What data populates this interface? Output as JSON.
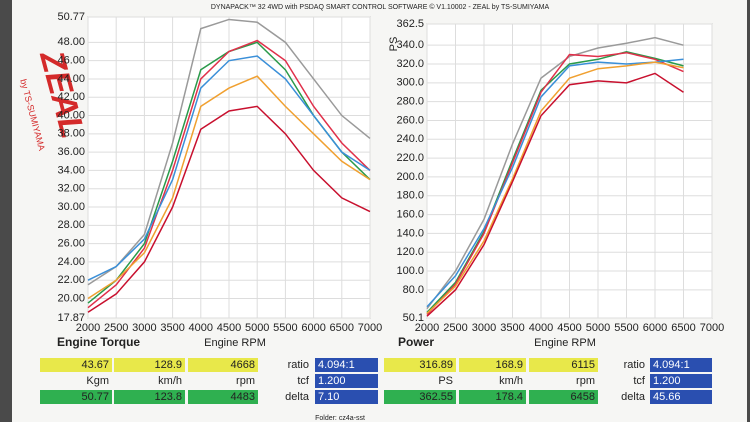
{
  "header": "DYNAPACK™ 32 4WD with PSDAQ SMART CONTROL SOFTWARE © V1.10002 - ZEAL by TS-SUMIYAMA",
  "logo": {
    "name": "ZEAL",
    "tagline": "by TS-SUMIYAMA"
  },
  "footer": "Folder: cz4a-sst",
  "chart_data": [
    {
      "type": "line",
      "title": "Engine Torque",
      "x_label": "Engine RPM",
      "x": [
        2000,
        2500,
        3000,
        3500,
        4000,
        4500,
        5000,
        5500,
        6000,
        6500,
        7000
      ],
      "xlim": [
        2000,
        7000
      ],
      "xticks": [
        2000,
        2500,
        3000,
        3500,
        4000,
        4500,
        5000,
        5500,
        6000,
        6500,
        7000
      ],
      "ylim": [
        17.87,
        50.77
      ],
      "yticks": [
        17.87,
        {
          "value": 20,
          "label": "20.00"
        },
        {
          "value": 22,
          "label": "22.00"
        },
        {
          "value": 24,
          "label": "24.00"
        },
        {
          "value": 26,
          "label": "26.00"
        },
        {
          "value": 28,
          "label": "28.00"
        },
        {
          "value": 30,
          "label": "30.00"
        },
        {
          "value": 32,
          "label": "32.00"
        },
        {
          "value": 34,
          "label": "34.00"
        },
        {
          "value": 36,
          "label": "36.00"
        },
        {
          "value": 38,
          "label": "38.00"
        },
        {
          "value": 40,
          "label": "40.00"
        },
        {
          "value": 42,
          "label": "42.00"
        },
        {
          "value": 44,
          "label": "44.00"
        },
        {
          "value": 46,
          "label": "46.00"
        },
        {
          "value": 48,
          "label": "48.00"
        },
        50.77
      ],
      "grid": true,
      "series": [
        {
          "color": "#9a9a9a",
          "values": [
            21.5,
            23.5,
            27,
            37,
            49.5,
            50.5,
            50.2,
            48,
            44,
            40,
            37.5
          ]
        },
        {
          "color": "#2a9a4a",
          "values": [
            19.5,
            22,
            26,
            35,
            45,
            47,
            48,
            45,
            40,
            36,
            33
          ]
        },
        {
          "color": "#e0304a",
          "values": [
            19,
            21.5,
            25.5,
            34,
            44,
            47,
            48.2,
            46,
            41,
            37,
            34
          ]
        },
        {
          "color": "#3a8fd8",
          "values": [
            22,
            23.5,
            26.5,
            33,
            43,
            46,
            46.5,
            44,
            40,
            36,
            34
          ]
        },
        {
          "color": "#f0a030",
          "values": [
            20,
            22,
            25,
            31,
            41,
            43,
            44.3,
            41,
            38,
            35,
            33
          ]
        },
        {
          "color": "#c8102e",
          "values": [
            18.5,
            20.5,
            24,
            30,
            38.5,
            40.5,
            41,
            38,
            34,
            31,
            29.5
          ]
        }
      ]
    },
    {
      "type": "line",
      "title": "Power",
      "x_label": "Engine RPM",
      "y_label": "PS",
      "x": [
        2000,
        2500,
        3000,
        3500,
        4000,
        4500,
        5000,
        5500,
        6000,
        6500
      ],
      "xlim": [
        2000,
        7000
      ],
      "xticks": [
        2000,
        2500,
        3000,
        3500,
        4000,
        4500,
        5000,
        5500,
        6000,
        6500,
        7000
      ],
      "ylim": [
        50.1,
        362.5
      ],
      "yticks": [
        50.1,
        {
          "value": 80,
          "label": "80.0"
        },
        {
          "value": 100,
          "label": "100.0"
        },
        {
          "value": 120,
          "label": "120.0"
        },
        {
          "value": 140,
          "label": "140.0"
        },
        {
          "value": 160,
          "label": "160.0"
        },
        {
          "value": 180,
          "label": "180.0"
        },
        {
          "value": 200,
          "label": "200.0"
        },
        {
          "value": 220,
          "label": "220.0"
        },
        {
          "value": 240,
          "label": "240.0"
        },
        {
          "value": 260,
          "label": "260.0"
        },
        {
          "value": 280,
          "label": "280.0"
        },
        {
          "value": 300,
          "label": "300.0"
        },
        {
          "value": 320,
          "label": "320.0"
        },
        {
          "value": 340,
          "label": "340.0"
        },
        362.5
      ],
      "grid": true,
      "series": [
        {
          "color": "#9a9a9a",
          "values": [
            60,
            100,
            155,
            235,
            305,
            328,
            337,
            342,
            348,
            340
          ]
        },
        {
          "color": "#2a9a4a",
          "values": [
            56,
            88,
            142,
            218,
            292,
            320,
            325,
            333,
            326,
            318
          ]
        },
        {
          "color": "#e0304a",
          "values": [
            54,
            86,
            140,
            215,
            290,
            330,
            328,
            332,
            325,
            312
          ]
        },
        {
          "color": "#3a8fd8",
          "values": [
            62,
            95,
            145,
            210,
            285,
            318,
            322,
            320,
            322,
            325
          ]
        },
        {
          "color": "#f0a030",
          "values": [
            55,
            84,
            132,
            198,
            270,
            305,
            315,
            318,
            322,
            316
          ]
        },
        {
          "color": "#c8102e",
          "values": [
            52,
            80,
            128,
            195,
            265,
            298,
            302,
            300,
            310,
            290
          ]
        }
      ]
    }
  ],
  "readouts": [
    {
      "top": [
        "43.67",
        "128.9",
        "4668"
      ],
      "units": [
        "Kgm",
        "km/h",
        "rpm"
      ],
      "bottom": [
        "50.77",
        "123.8",
        "4483"
      ],
      "params": [
        [
          "ratio",
          "4.094:1"
        ],
        [
          "tcf",
          "1.200"
        ],
        [
          "delta",
          "7.10"
        ]
      ]
    },
    {
      "top": [
        "316.89",
        "168.9",
        "6115"
      ],
      "units": [
        "PS",
        "km/h",
        "rpm"
      ],
      "bottom": [
        "362.55",
        "178.4",
        "6458"
      ],
      "params": [
        [
          "ratio",
          "4.094:1"
        ],
        [
          "tcf",
          "1.200"
        ],
        [
          "delta",
          "45.66"
        ]
      ]
    }
  ]
}
